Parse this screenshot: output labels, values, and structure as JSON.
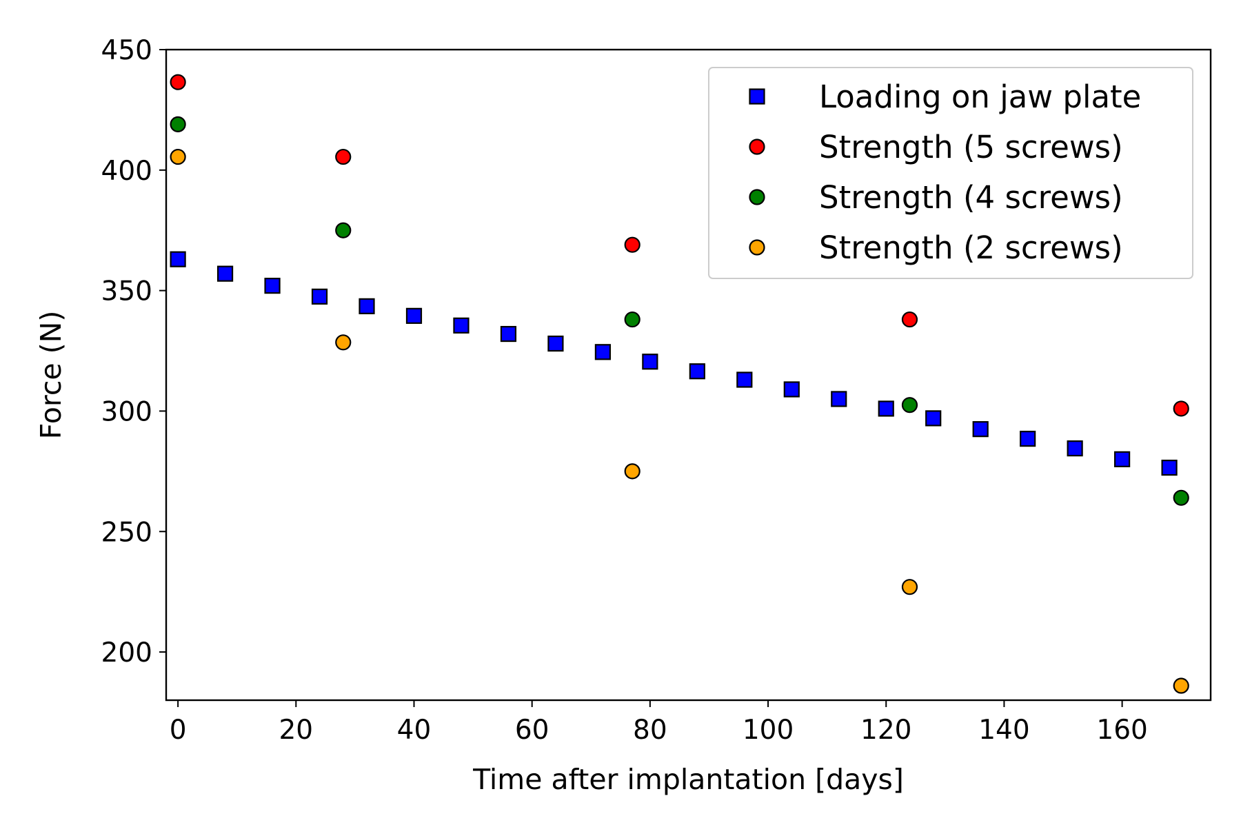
{
  "chart_data": {
    "type": "scatter",
    "title": "",
    "xlabel": "Time after implantation [days]",
    "ylabel": "Force (N)",
    "xlim": [
      -2,
      175
    ],
    "ylim": [
      180,
      450
    ],
    "xticks": [
      0,
      20,
      40,
      60,
      80,
      100,
      120,
      140,
      160
    ],
    "yticks": [
      200,
      250,
      300,
      350,
      400,
      450
    ],
    "grid": false,
    "legend_position": "top-right",
    "series": [
      {
        "name": "Loading on jaw plate",
        "marker": "square",
        "color": "#0000ff",
        "x": [
          0,
          8,
          16,
          24,
          32,
          40,
          48,
          56,
          64,
          72,
          80,
          88,
          96,
          104,
          112,
          120,
          128,
          136,
          144,
          152,
          160,
          168
        ],
        "y": [
          363,
          357,
          352,
          347.5,
          343.5,
          339.5,
          335.5,
          332,
          328,
          324.5,
          320.5,
          316.5,
          313,
          309,
          305,
          301,
          297,
          292.5,
          288.5,
          284.5,
          280,
          276.5
        ]
      },
      {
        "name": "Strength (5 screws)",
        "marker": "circle",
        "color": "#ff0000",
        "x": [
          0,
          28,
          77,
          124,
          170
        ],
        "y": [
          436.5,
          405.5,
          369,
          338,
          301
        ]
      },
      {
        "name": "Strength (4 screws)",
        "marker": "circle",
        "color": "#008000",
        "x": [
          0,
          28,
          77,
          124,
          170
        ],
        "y": [
          419,
          375,
          338,
          302.5,
          264
        ]
      },
      {
        "name": "Strength (2 screws)",
        "marker": "circle",
        "color": "#ffa500",
        "x": [
          0,
          28,
          77,
          124,
          170
        ],
        "y": [
          405.5,
          328.5,
          275,
          227,
          186
        ]
      }
    ]
  }
}
